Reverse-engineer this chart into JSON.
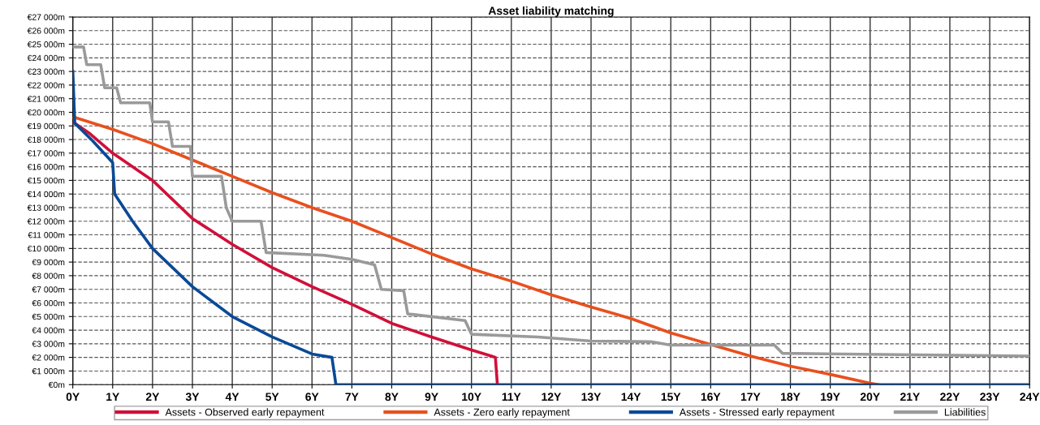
{
  "chart_data": {
    "type": "line",
    "title": "Asset liability matching",
    "xlim": [
      0,
      24
    ],
    "ylim": [
      0,
      27000
    ],
    "xticks": [
      {
        "value": 0,
        "label": "0Y"
      },
      {
        "value": 1,
        "label": "1Y"
      },
      {
        "value": 2,
        "label": "2Y"
      },
      {
        "value": 3,
        "label": "3Y"
      },
      {
        "value": 4,
        "label": "4Y"
      },
      {
        "value": 5,
        "label": "5Y"
      },
      {
        "value": 6,
        "label": "6Y"
      },
      {
        "value": 7,
        "label": "7Y"
      },
      {
        "value": 8,
        "label": "8Y"
      },
      {
        "value": 9,
        "label": "9Y"
      },
      {
        "value": 10,
        "label": "10Y"
      },
      {
        "value": 11,
        "label": "11Y"
      },
      {
        "value": 12,
        "label": "12Y"
      },
      {
        "value": 13,
        "label": "13Y"
      },
      {
        "value": 14,
        "label": "14Y"
      },
      {
        "value": 15,
        "label": "15Y"
      },
      {
        "value": 16,
        "label": "16Y"
      },
      {
        "value": 17,
        "label": "17Y"
      },
      {
        "value": 18,
        "label": "18Y"
      },
      {
        "value": 19,
        "label": "19Y"
      },
      {
        "value": 20,
        "label": "20Y"
      },
      {
        "value": 21,
        "label": "21Y"
      },
      {
        "value": 22,
        "label": "22Y"
      },
      {
        "value": 23,
        "label": "23Y"
      },
      {
        "value": 24,
        "label": "24Y"
      }
    ],
    "yticks": [
      {
        "value": 0,
        "label": "€0m"
      },
      {
        "value": 1000,
        "label": "€1 000m"
      },
      {
        "value": 2000,
        "label": "€2 000m"
      },
      {
        "value": 3000,
        "label": "€3 000m"
      },
      {
        "value": 4000,
        "label": "€4 000m"
      },
      {
        "value": 5000,
        "label": "€5 000m"
      },
      {
        "value": 6000,
        "label": "€6 000m"
      },
      {
        "value": 7000,
        "label": "€7 000m"
      },
      {
        "value": 8000,
        "label": "€8 000m"
      },
      {
        "value": 9000,
        "label": "€9 000m"
      },
      {
        "value": 10000,
        "label": "€10 000m"
      },
      {
        "value": 11000,
        "label": "€11 000m"
      },
      {
        "value": 12000,
        "label": "€12 000m"
      },
      {
        "value": 13000,
        "label": "€13 000m"
      },
      {
        "value": 14000,
        "label": "€14 000m"
      },
      {
        "value": 15000,
        "label": "€15 000m"
      },
      {
        "value": 16000,
        "label": "€16 000m"
      },
      {
        "value": 17000,
        "label": "€17 000m"
      },
      {
        "value": 18000,
        "label": "€18 000m"
      },
      {
        "value": 19000,
        "label": "€19 000m"
      },
      {
        "value": 20000,
        "label": "€20 000m"
      },
      {
        "value": 21000,
        "label": "€21 000m"
      },
      {
        "value": 22000,
        "label": "€22 000m"
      },
      {
        "value": 23000,
        "label": "€23 000m"
      },
      {
        "value": 24000,
        "label": "€24 000m"
      },
      {
        "value": 25000,
        "label": "€25 000m"
      },
      {
        "value": 26000,
        "label": "€26 000m"
      },
      {
        "value": 27000,
        "label": "€27 000m"
      }
    ],
    "grid": true,
    "legend": "bottom",
    "series": [
      {
        "name": "Assets - Observed early repayment",
        "color": "#d0103a",
        "x": [
          0,
          0.05,
          0.4,
          1,
          2,
          3,
          4,
          5,
          6,
          7,
          8,
          9,
          10,
          10.5,
          10.6,
          10.65
        ],
        "values": [
          19200,
          19200,
          18500,
          17000,
          15000,
          12200,
          10300,
          8600,
          7200,
          5900,
          4500,
          3500,
          2550,
          2100,
          2000,
          0
        ]
      },
      {
        "name": "Assets - Zero early repayment",
        "color": "#e8501e",
        "x": [
          0,
          0.08,
          1,
          2,
          3,
          4,
          5,
          6,
          7,
          8,
          9,
          10,
          11,
          12,
          13,
          14,
          15,
          16,
          17,
          18,
          19,
          20,
          20.2
        ],
        "values": [
          19600,
          19600,
          18750,
          17700,
          16500,
          15300,
          14100,
          13000,
          12000,
          10800,
          9600,
          8500,
          7600,
          6600,
          5700,
          4850,
          3800,
          2950,
          2100,
          1350,
          750,
          100,
          0
        ]
      },
      {
        "name": "Assets - Stressed early repayment",
        "color": "#0a4a96",
        "x": [
          0,
          0.05,
          0.5,
          1,
          1.05,
          1.5,
          2,
          3,
          4,
          5,
          6,
          6.5,
          6.6,
          24
        ],
        "values": [
          23000,
          19200,
          17900,
          16300,
          14000,
          12000,
          10000,
          7200,
          5000,
          3500,
          2250,
          2000,
          0,
          0
        ]
      },
      {
        "name": "Liabilities",
        "color": "#9a9a9a",
        "x": [
          0,
          0.08,
          0.27,
          0.35,
          0.7,
          0.8,
          1.1,
          1.2,
          1.93,
          2.0,
          2.4,
          2.5,
          2.95,
          3.0,
          3.73,
          3.85,
          4.0,
          4.72,
          4.85,
          6.3,
          7.0,
          7.57,
          7.74,
          8.3,
          8.4,
          9.84,
          10.0,
          11.67,
          13.0,
          14.5,
          15.0,
          17.6,
          17.8,
          24
        ],
        "values": [
          24800,
          24800,
          24800,
          23500,
          23500,
          21800,
          21800,
          20700,
          20700,
          19300,
          19300,
          17500,
          17500,
          15300,
          15300,
          13000,
          12000,
          12000,
          9700,
          9500,
          9200,
          8800,
          7000,
          6900,
          5200,
          4700,
          3700,
          3500,
          3200,
          3150,
          2900,
          2900,
          2300,
          2100
        ]
      }
    ]
  }
}
